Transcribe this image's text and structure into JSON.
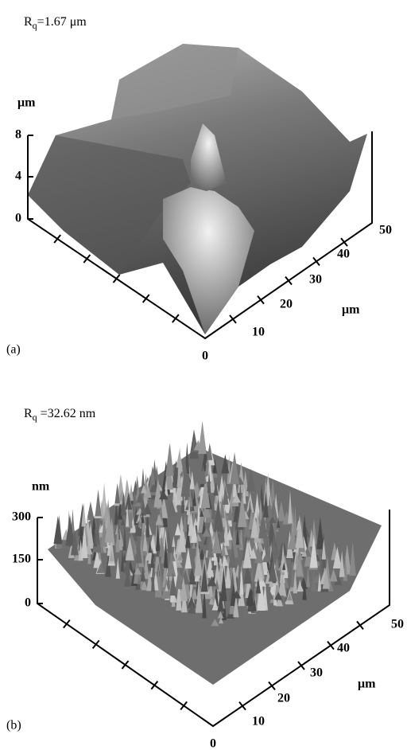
{
  "panels": [
    {
      "roughness": {
        "symbol": "R",
        "subscript": "q",
        "value": "=1.67 μm"
      },
      "z_unit": "μm",
      "z_ticks": [
        8,
        4,
        0
      ],
      "xy_unit": "μm",
      "xy_ticks": [
        10,
        20,
        30,
        40,
        50
      ],
      "origin": 0,
      "label": "(a)"
    },
    {
      "roughness": {
        "symbol": "R",
        "subscript": "q",
        "value": " =32.62 nm"
      },
      "z_unit": "nm",
      "z_ticks": [
        300,
        150,
        0
      ],
      "xy_unit": "μm",
      "xy_ticks": [
        10,
        20,
        30,
        40,
        50
      ],
      "origin": 0,
      "label": "(b)"
    }
  ]
}
